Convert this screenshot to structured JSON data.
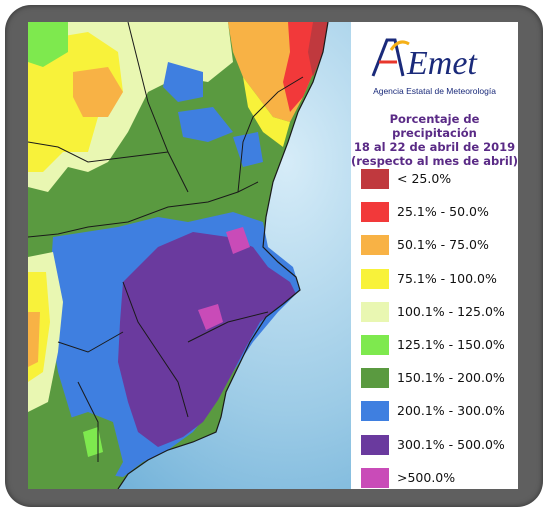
{
  "logo": {
    "brand": "AEmet",
    "subtitle": "Agencia Estatal de Meteorología"
  },
  "legend": {
    "title_line1": "Porcentaje de precipitación",
    "title_line2": "18 al 22 de abril de 2019",
    "title_line3": "(respecto al mes de abril)",
    "items": [
      {
        "label": "< 25.0%",
        "color": "#c0393e"
      },
      {
        "label": "25.1% - 50.0%",
        "color": "#f2393a"
      },
      {
        "label": "50.1% - 75.0%",
        "color": "#f8b245"
      },
      {
        "label": "75.1% - 100.0%",
        "color": "#f8f23a"
      },
      {
        "label": "100.1% - 125.0%",
        "color": "#e9f7b2"
      },
      {
        "label": "125.1% - 150.0%",
        "color": "#7ee94e"
      },
      {
        "label": "150.1% - 200.0%",
        "color": "#5a9a40"
      },
      {
        "label": "200.1% - 300.0%",
        "color": "#3f7fe0"
      },
      {
        "label": "300.1% - 500.0%",
        "color": "#6a3a9e"
      },
      {
        "label": ">500.0%",
        "color": "#c94bb8"
      }
    ]
  },
  "map": {
    "sea_color": "#8fc3e0"
  }
}
